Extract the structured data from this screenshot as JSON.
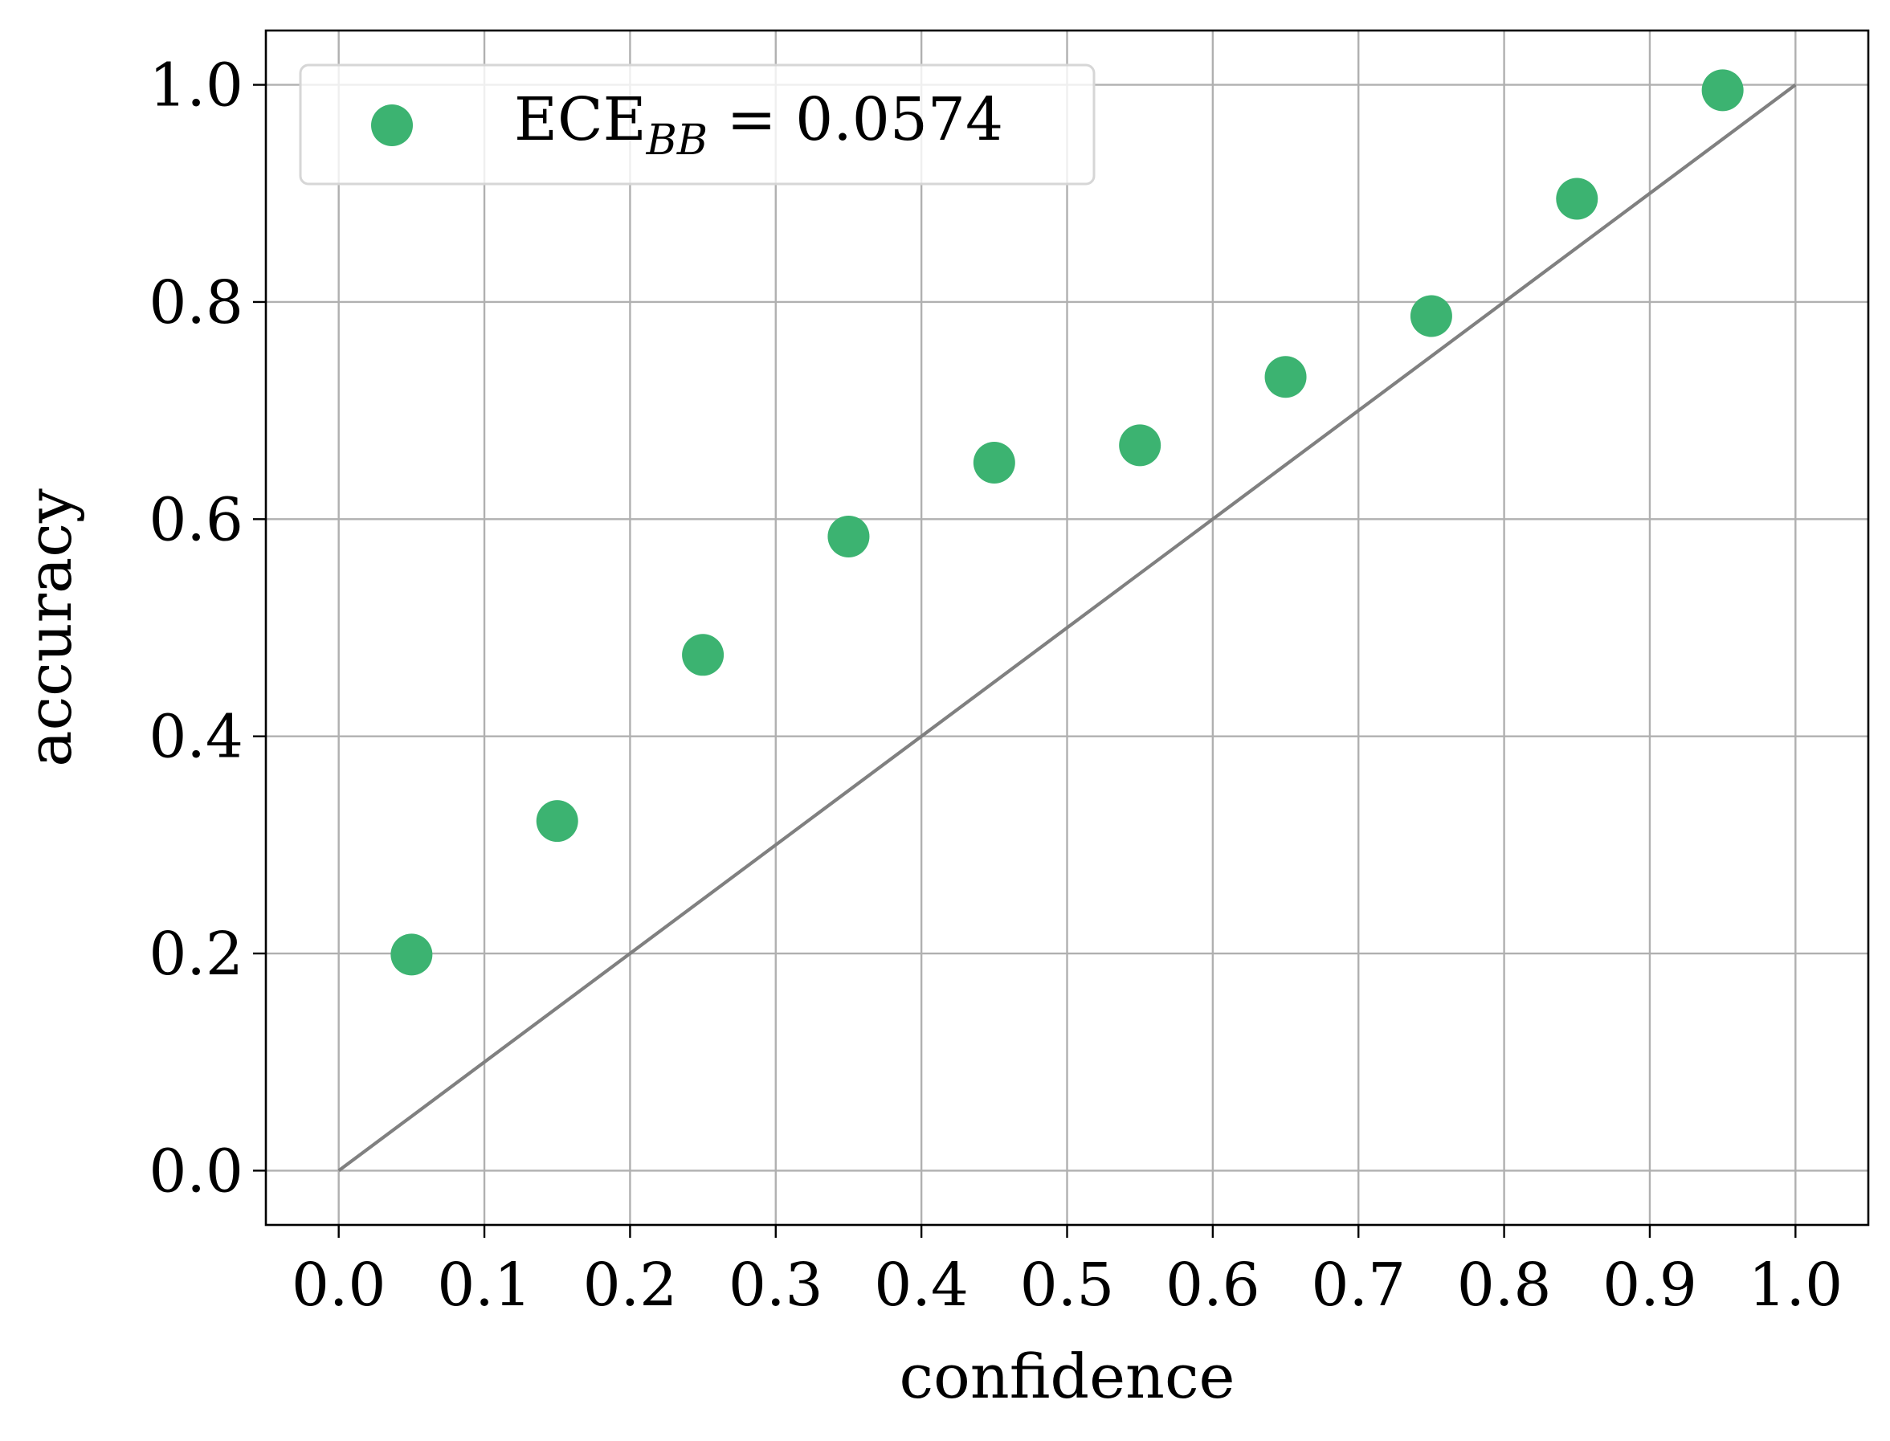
{
  "chart_data": {
    "type": "scatter",
    "xlabel": "confidence",
    "ylabel": "accuracy",
    "xlim": [
      -0.05,
      1.05
    ],
    "ylim": [
      -0.05,
      1.05
    ],
    "x_ticks": [
      "0.0",
      "0.1",
      "0.2",
      "0.3",
      "0.4",
      "0.5",
      "0.6",
      "0.7",
      "0.8",
      "0.9",
      "1.0"
    ],
    "y_ticks": [
      "0.0",
      "0.2",
      "0.4",
      "0.6",
      "0.8",
      "1.0"
    ],
    "grid": true,
    "legend_position": "top-left",
    "series": [
      {
        "name": "ECE_BB = 0.0574",
        "color": "#3cb371",
        "x": [
          0.05,
          0.15,
          0.25,
          0.35,
          0.45,
          0.55,
          0.65,
          0.75,
          0.85,
          0.95
        ],
        "y": [
          0.199,
          0.322,
          0.475,
          0.584,
          0.652,
          0.668,
          0.731,
          0.787,
          0.895,
          0.995
        ]
      }
    ],
    "reference_line": {
      "x": [
        0.0,
        1.0
      ],
      "y": [
        0.0,
        1.0
      ],
      "color": "#808080"
    },
    "legend": {
      "label_main": "ECE",
      "label_sub": "BB",
      "label_value": " = 0.0574"
    }
  }
}
